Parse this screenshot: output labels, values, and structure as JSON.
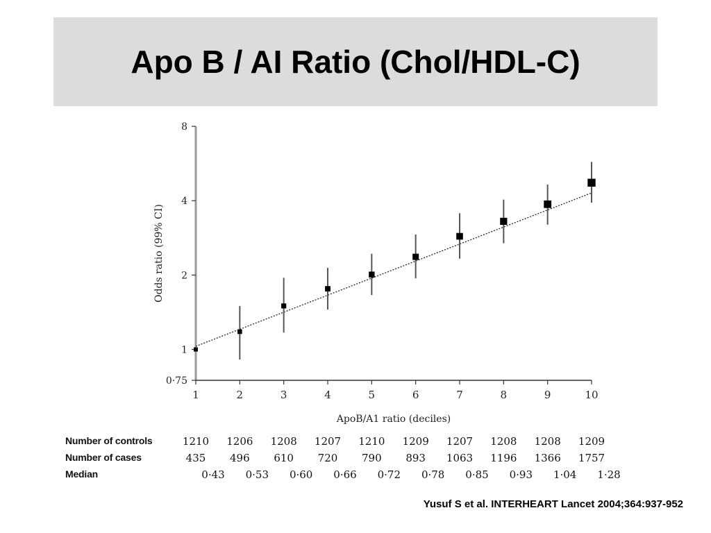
{
  "slide": {
    "title": "Apo B / AI Ratio (Chol/HDL-C)",
    "citation": "Yusuf S et al. INTERHEART Lancet 2004;364:937-952"
  },
  "chart_data": {
    "type": "scatter",
    "xlabel": "ApoB/A1 ratio (deciles)",
    "ylabel": "Odds ratio (99% CI)",
    "y_scale": "log",
    "ylim": [
      0.75,
      8
    ],
    "xlim": [
      1,
      10
    ],
    "x_ticks": [
      "1",
      "2",
      "3",
      "4",
      "5",
      "6",
      "7",
      "8",
      "9",
      "10"
    ],
    "y_ticks": [
      {
        "value": 0.75,
        "label": "0·75"
      },
      {
        "value": 1,
        "label": "1"
      },
      {
        "value": 2,
        "label": "2"
      },
      {
        "value": 4,
        "label": "4"
      },
      {
        "value": 8,
        "label": "8"
      }
    ],
    "grid": false,
    "trend_line": true,
    "points": [
      {
        "x": 1,
        "y": 1.0,
        "lo": 1.0,
        "hi": 1.0
      },
      {
        "x": 2,
        "y": 1.18,
        "lo": 0.91,
        "hi": 1.5
      },
      {
        "x": 3,
        "y": 1.5,
        "lo": 1.17,
        "hi": 1.95
      },
      {
        "x": 4,
        "y": 1.76,
        "lo": 1.45,
        "hi": 2.14
      },
      {
        "x": 5,
        "y": 2.01,
        "lo": 1.66,
        "hi": 2.44
      },
      {
        "x": 6,
        "y": 2.37,
        "lo": 1.94,
        "hi": 2.92
      },
      {
        "x": 7,
        "y": 2.87,
        "lo": 2.33,
        "hi": 3.56
      },
      {
        "x": 8,
        "y": 3.3,
        "lo": 2.69,
        "hi": 4.04
      },
      {
        "x": 9,
        "y": 3.87,
        "lo": 3.2,
        "hi": 4.65
      },
      {
        "x": 10,
        "y": 4.73,
        "lo": 3.93,
        "hi": 5.74
      }
    ],
    "table": {
      "rows": [
        {
          "label": "Number of controls",
          "values": [
            "1210",
            "1206",
            "1208",
            "1207",
            "1210",
            "1209",
            "1207",
            "1208",
            "1208",
            "1209"
          ]
        },
        {
          "label": "Number of cases",
          "values": [
            "435",
            "496",
            "610",
            "720",
            "790",
            "893",
            "1063",
            "1196",
            "1366",
            "1757"
          ]
        },
        {
          "label": "Median",
          "values": [
            "0·43",
            "0·53",
            "0·60",
            "0·66",
            "0·72",
            "0·78",
            "0·85",
            "0·93",
            "1·04",
            "1·28"
          ]
        }
      ]
    }
  }
}
